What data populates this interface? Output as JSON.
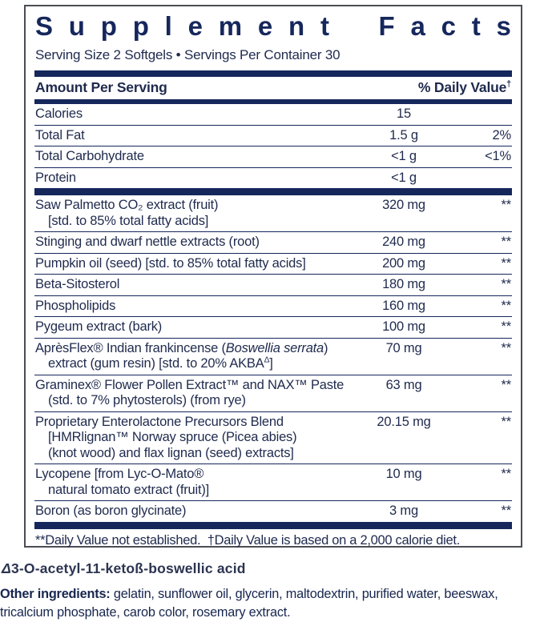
{
  "label": {
    "title": "Supplement Facts",
    "serving_line": "Serving Size 2 Softgels • Servings Per Container 30",
    "header": {
      "amount_col": "Amount Per Serving",
      "dv_col_main": "% Daily Value",
      "dv_col_sup": "†"
    },
    "macros": [
      {
        "lines": [
          "Calories"
        ],
        "amount": "15",
        "dv": ""
      },
      {
        "lines": [
          "Total Fat"
        ],
        "amount": "1.5 g",
        "dv": "2%"
      },
      {
        "lines": [
          "Total Carbohydrate"
        ],
        "amount": "<1 g",
        "dv": "<1%"
      },
      {
        "lines": [
          "Protein"
        ],
        "amount": "<1 g",
        "dv": ""
      }
    ],
    "supplements": [
      {
        "lines": [
          "Saw Palmetto CO₂ extract (fruit)",
          "[std. to 85% total fatty acids]"
        ],
        "amount": "320 mg",
        "dv": "**"
      },
      {
        "lines": [
          "Stinging and dwarf nettle extracts (root)"
        ],
        "amount": "240 mg",
        "dv": "**"
      },
      {
        "lines": [
          "Pumpkin oil (seed) [std. to 85% total fatty acids]"
        ],
        "amount": "200 mg",
        "dv": "**"
      },
      {
        "lines": [
          "Beta-Sitosterol"
        ],
        "amount": "180 mg",
        "dv": "**"
      },
      {
        "lines": [
          "Phospholipids"
        ],
        "amount": "160 mg",
        "dv": "**"
      },
      {
        "lines": [
          "Pygeum extract (bark)"
        ],
        "amount": "100 mg",
        "dv": "**"
      },
      {
        "lines": [
          [
            {
              "t": "AprèsFlex® Indian frankincense (",
              "s": ""
            },
            {
              "t": "Boswellia serrata",
              "s": "i"
            },
            {
              "t": ")",
              "s": ""
            }
          ],
          [
            {
              "t": "extract (gum resin) [std. to 20% AKBA",
              "s": ""
            },
            {
              "t": "Δ",
              "s": "sup"
            },
            {
              "t": "]",
              "s": ""
            }
          ]
        ],
        "amount": "70 mg",
        "dv": "**"
      },
      {
        "lines": [
          "Graminex® Flower Pollen Extract™ and NAX™ Paste",
          "(std. to 7% phytosterols) (from rye)"
        ],
        "amount": "63 mg",
        "dv": "**"
      },
      {
        "lines": [
          "Proprietary Enterolactone Precursors Blend",
          "[HMRlignan™ Norway spruce (Picea abies)",
          "(knot wood) and flax lignan (seed) extracts]"
        ],
        "amount": "20.15 mg",
        "dv": "**"
      },
      {
        "lines": [
          "Lycopene [from Lyc-O-Mato®",
          "natural tomato extract (fruit)]"
        ],
        "amount": "10 mg",
        "dv": "**"
      },
      {
        "lines": [
          "Boron (as boron glycinate)"
        ],
        "amount": "3 mg",
        "dv": "**"
      }
    ],
    "footnote": "**Daily Value not established.  †Daily Value is based on a 2,000 calorie diet."
  },
  "footer": {
    "delta_note": [
      {
        "t": "Δ",
        "s": "i"
      },
      {
        "t": "3-O-acetyl-11-ketoß-boswellic acid",
        "s": ""
      }
    ],
    "other_ingredients_label": "Other ingredients:",
    "other_ingredients_text": " gelatin, sunflower oil, glycerin, maltodextrin, purified water, beeswax, tricalcium phosphate, carob color, rosemary extract."
  },
  "colors": {
    "navy": "#16275c",
    "text": "#1f2a4d",
    "box_border": "#4a4e54"
  }
}
